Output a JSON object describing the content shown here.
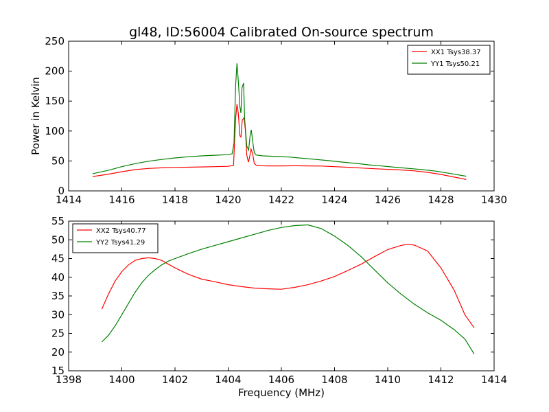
{
  "title": "gl48, ID:56004 Calibrated On-source spectrum",
  "chart_data": [
    {
      "type": "line",
      "ylabel": "Power in Kelvin",
      "xlabel": "",
      "xlim": [
        1414,
        1430
      ],
      "ylim": [
        0,
        250
      ],
      "xticks": [
        1414,
        1416,
        1418,
        1420,
        1422,
        1424,
        1426,
        1428,
        1430
      ],
      "yticks": [
        0,
        50,
        100,
        150,
        200,
        250
      ],
      "legend_position": "top-right",
      "grid": false,
      "series": [
        {
          "name": "XX1 Tsys38.37",
          "color": "#ff0000",
          "points": [
            [
              1414.9,
              24
            ],
            [
              1415.5,
              28
            ],
            [
              1416,
              32
            ],
            [
              1416.5,
              35.5
            ],
            [
              1417,
              37.5
            ],
            [
              1417.5,
              38.5
            ],
            [
              1418,
              39.2
            ],
            [
              1418.5,
              39.6
            ],
            [
              1419,
              40
            ],
            [
              1419.5,
              40.5
            ],
            [
              1420,
              41
            ],
            [
              1420.2,
              42.5
            ],
            [
              1420.28,
              120
            ],
            [
              1420.33,
              145
            ],
            [
              1420.38,
              130
            ],
            [
              1420.44,
              92
            ],
            [
              1420.48,
              90
            ],
            [
              1420.53,
              118
            ],
            [
              1420.6,
              122
            ],
            [
              1420.65,
              100
            ],
            [
              1420.7,
              60
            ],
            [
              1420.76,
              48
            ],
            [
              1420.8,
              55
            ],
            [
              1420.86,
              70
            ],
            [
              1420.92,
              62
            ],
            [
              1420.98,
              46
            ],
            [
              1421.05,
              43
            ],
            [
              1421.2,
              42
            ],
            [
              1421.5,
              41.8
            ],
            [
              1422,
              41.8
            ],
            [
              1422.5,
              42
            ],
            [
              1423,
              41.8
            ],
            [
              1423.5,
              41.5
            ],
            [
              1424,
              40.5
            ],
            [
              1424.5,
              39.5
            ],
            [
              1425,
              38.2
            ],
            [
              1425.5,
              37
            ],
            [
              1426,
              36
            ],
            [
              1426.5,
              35
            ],
            [
              1427,
              33.5
            ],
            [
              1427.5,
              31
            ],
            [
              1428,
              27.5
            ],
            [
              1428.5,
              23
            ],
            [
              1428.95,
              19
            ]
          ]
        },
        {
          "name": "YY1 Tsys50.21",
          "color": "#008000",
          "points": [
            [
              1414.9,
              28.5
            ],
            [
              1415.5,
              34.5
            ],
            [
              1416,
              40.5
            ],
            [
              1416.5,
              45.5
            ],
            [
              1417,
              49.5
            ],
            [
              1417.5,
              52.5
            ],
            [
              1418,
              55
            ],
            [
              1418.5,
              57
            ],
            [
              1419,
              58.5
            ],
            [
              1419.5,
              59.5
            ],
            [
              1420,
              60.5
            ],
            [
              1420.15,
              62
            ],
            [
              1420.22,
              80
            ],
            [
              1420.28,
              175
            ],
            [
              1420.33,
              213
            ],
            [
              1420.38,
              185
            ],
            [
              1420.44,
              140
            ],
            [
              1420.48,
              130
            ],
            [
              1420.52,
              172
            ],
            [
              1420.58,
              180
            ],
            [
              1420.62,
              120
            ],
            [
              1420.7,
              75
            ],
            [
              1420.77,
              68
            ],
            [
              1420.83,
              95
            ],
            [
              1420.87,
              102
            ],
            [
              1420.93,
              80
            ],
            [
              1420.98,
              64
            ],
            [
              1421.05,
              60
            ],
            [
              1421.3,
              58.5
            ],
            [
              1421.8,
              57.5
            ],
            [
              1422.3,
              56.5
            ],
            [
              1422.8,
              54.5
            ],
            [
              1423.3,
              52.5
            ],
            [
              1423.8,
              50.5
            ],
            [
              1424.3,
              48
            ],
            [
              1424.8,
              46
            ],
            [
              1425.3,
              43.5
            ],
            [
              1425.8,
              41.5
            ],
            [
              1426.3,
              39.5
            ],
            [
              1426.8,
              37.5
            ],
            [
              1427.3,
              35.5
            ],
            [
              1427.8,
              33
            ],
            [
              1428.3,
              29.5
            ],
            [
              1428.95,
              24.5
            ]
          ]
        }
      ]
    },
    {
      "type": "line",
      "ylabel": "",
      "xlabel": "Frequency (MHz)",
      "xlim": [
        1398,
        1414
      ],
      "ylim": [
        15,
        55
      ],
      "xticks": [
        1398,
        1400,
        1402,
        1404,
        1406,
        1408,
        1410,
        1412,
        1414
      ],
      "yticks": [
        15,
        20,
        25,
        30,
        35,
        40,
        45,
        50,
        55
      ],
      "legend_position": "top-left",
      "grid": false,
      "series": [
        {
          "name": "XX2 Tsys40.77",
          "color": "#ff0000",
          "points": [
            [
              1399.25,
              31.5
            ],
            [
              1399.5,
              35.5
            ],
            [
              1399.75,
              39
            ],
            [
              1400,
              41.5
            ],
            [
              1400.25,
              43.3
            ],
            [
              1400.5,
              44.5
            ],
            [
              1400.75,
              45
            ],
            [
              1401,
              45.2
            ],
            [
              1401.25,
              45
            ],
            [
              1401.5,
              44.5
            ],
            [
              1401.75,
              43.5
            ],
            [
              1402,
              42.5
            ],
            [
              1402.5,
              40.8
            ],
            [
              1403,
              39.5
            ],
            [
              1403.5,
              38.8
            ],
            [
              1404,
              38
            ],
            [
              1404.5,
              37.5
            ],
            [
              1405,
              37.1
            ],
            [
              1405.5,
              36.9
            ],
            [
              1406,
              36.8
            ],
            [
              1406.5,
              37.3
            ],
            [
              1407,
              38
            ],
            [
              1407.5,
              39
            ],
            [
              1408,
              40.2
            ],
            [
              1408.5,
              41.8
            ],
            [
              1409,
              43.5
            ],
            [
              1409.5,
              45.5
            ],
            [
              1410,
              47.4
            ],
            [
              1410.5,
              48.5
            ],
            [
              1410.75,
              48.8
            ],
            [
              1411,
              48.6
            ],
            [
              1411.5,
              47
            ],
            [
              1412,
              42.5
            ],
            [
              1412.5,
              36.5
            ],
            [
              1412.9,
              30
            ],
            [
              1413.25,
              26.5
            ]
          ]
        },
        {
          "name": "YY2 Tsys41.29",
          "color": "#008000",
          "points": [
            [
              1399.25,
              22.7
            ],
            [
              1399.5,
              24.5
            ],
            [
              1399.75,
              27
            ],
            [
              1400,
              30
            ],
            [
              1400.25,
              33
            ],
            [
              1400.5,
              36
            ],
            [
              1400.75,
              38.5
            ],
            [
              1401,
              40.5
            ],
            [
              1401.25,
              42
            ],
            [
              1401.5,
              43.3
            ],
            [
              1401.75,
              44.3
            ],
            [
              1402,
              45
            ],
            [
              1402.5,
              46.3
            ],
            [
              1403,
              47.5
            ],
            [
              1403.5,
              48.5
            ],
            [
              1404,
              49.5
            ],
            [
              1404.5,
              50.5
            ],
            [
              1405,
              51.5
            ],
            [
              1405.5,
              52.5
            ],
            [
              1406,
              53.3
            ],
            [
              1406.5,
              53.8
            ],
            [
              1407,
              54
            ],
            [
              1407.5,
              53
            ],
            [
              1408,
              51
            ],
            [
              1408.5,
              48.5
            ],
            [
              1409,
              45.5
            ],
            [
              1409.5,
              42
            ],
            [
              1410,
              38.5
            ],
            [
              1410.5,
              35.5
            ],
            [
              1411,
              32.8
            ],
            [
              1411.5,
              30.5
            ],
            [
              1412,
              28.5
            ],
            [
              1412.5,
              26
            ],
            [
              1412.9,
              23.5
            ],
            [
              1413.25,
              19.5
            ]
          ]
        }
      ]
    }
  ]
}
